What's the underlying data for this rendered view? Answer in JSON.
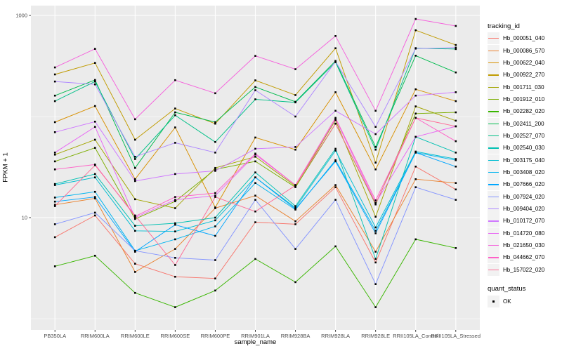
{
  "figure": {
    "background": "#FFFFFF",
    "panel_background": "#EBEBEB",
    "grid_color": "#FFFFFF",
    "tick_label_color": "#4D4D4D",
    "axis_title_color": "#000000",
    "point_color": "#000000",
    "legend_key_background": "#F2F2F2"
  },
  "chart_data": {
    "type": "line",
    "title": "",
    "xlabel": "sample_name",
    "ylabel": "FPKM + 1",
    "y_scale": "log10",
    "grid": true,
    "point_shape": "square",
    "ylim": [
      0.78,
      1250
    ],
    "y_ticks": [
      {
        "value": 1000,
        "label": "1000"
      },
      {
        "value": 10,
        "label": "10"
      }
    ],
    "y_minor": [
      100,
      1
    ],
    "categories": [
      "PB350LA",
      "RRIM600LA",
      "RRIM600LE",
      "RRIM600SE",
      "RRIM600PE",
      "RRIM901LA",
      "RRIM928BA",
      "RRIM928LA",
      "RRIM928LE",
      "RRII105LA_Control",
      "RRII105LA_Stressed"
    ],
    "series": [
      {
        "id": "Hb_000051_040",
        "color": "#F8766D",
        "values": [
          6.4,
          10.5,
          3.5,
          2.6,
          2.5,
          9.0,
          8.6,
          20,
          3.6,
          32,
          19
        ]
      },
      {
        "id": "Hb_000086_570",
        "color": "#EA8331",
        "values": [
          13.4,
          15.5,
          2.9,
          4.9,
          12.4,
          16.5,
          9.2,
          21,
          4.6,
          24,
          22
        ]
      },
      {
        "id": "Hb_000622_040",
        "color": "#D89000",
        "values": [
          88,
          127,
          24,
          78,
          12.6,
          62,
          47,
          174,
          30,
          186,
          142
        ]
      },
      {
        "id": "Hb_000922_270",
        "color": "#C09B00",
        "values": [
          261,
          339,
          59,
          120,
          85,
          228,
          163,
          474,
          35,
          714,
          510
        ]
      },
      {
        "id": "Hb_001711_030",
        "color": "#A3A500",
        "values": [
          42,
          59,
          15.2,
          12.4,
          31,
          40,
          20.5,
          92,
          10.2,
          126,
          91
        ]
      },
      {
        "id": "Hb_001912_010",
        "color": "#7CAE00",
        "values": [
          36,
          49,
          9.7,
          14.5,
          30,
          36,
          20,
          85,
          13.5,
          107,
          110
        ]
      },
      {
        "id": "Hb_002282_020",
        "color": "#39B600",
        "values": [
          3.3,
          4.2,
          1.8,
          1.3,
          1.9,
          3.9,
          2.3,
          5.2,
          1.3,
          6.1,
          5.0
        ]
      },
      {
        "id": "Hb_002411_200",
        "color": "#00BB4E",
        "values": [
          161,
          230,
          31,
          110,
          88,
          196,
          140,
          355,
          50,
          400,
          273
        ]
      },
      {
        "id": "Hb_002527_070",
        "color": "#00C087",
        "values": [
          142,
          222,
          38,
          103,
          56,
          148,
          138,
          345,
          47,
          475,
          465
        ]
      },
      {
        "id": "Hb_002540_030",
        "color": "#00C0B2",
        "values": [
          21.5,
          27,
          8.3,
          8.8,
          10,
          28,
          13,
          48,
          3.9,
          63,
          44
        ]
      },
      {
        "id": "Hb_003175_040",
        "color": "#00BDD2",
        "values": [
          21,
          25,
          7.4,
          7.3,
          9.4,
          25,
          12.5,
          46,
          8.0,
          45,
          38
        ]
      },
      {
        "id": "Hb_003408_020",
        "color": "#00B4EF",
        "values": [
          15.8,
          18,
          4.7,
          6.1,
          8.2,
          22,
          12,
          37,
          7.4,
          44,
          37
        ]
      },
      {
        "id": "Hb_007666_020",
        "color": "#00A6FF",
        "values": [
          14.4,
          16,
          4.6,
          8.5,
          6.6,
          25,
          12.2,
          36,
          7.0,
          44,
          32
        ]
      },
      {
        "id": "Hb_007924_020",
        "color": "#8494FF",
        "values": [
          8.6,
          11.2,
          4.7,
          4.0,
          3.8,
          15,
          4.9,
          15,
          2.2,
          20,
          15
        ]
      },
      {
        "id": "Hb_009404_020",
        "color": "#AE87FF",
        "values": [
          222,
          208,
          40,
          55,
          44,
          182,
          100,
          350,
          79,
          470,
          480
        ]
      },
      {
        "id": "Hb_010172_070",
        "color": "#CF78FF",
        "values": [
          70,
          89,
          23,
          27,
          29,
          48,
          50,
          114,
          67,
          161,
          174
        ]
      },
      {
        "id": "Hb_014720_080",
        "color": "#E866F4",
        "values": [
          44,
          79,
          10,
          15,
          16.5,
          42,
          21,
          95,
          14,
          63,
          80
        ]
      },
      {
        "id": "Hb_021650_030",
        "color": "#F562DC",
        "values": [
          306,
          467,
          94,
          229,
          170,
          398,
          294,
          626,
          114,
          923,
          787
        ]
      },
      {
        "id": "Hb_044662_070",
        "color": "#FF61C7",
        "values": [
          30,
          33.5,
          10.3,
          16,
          17.5,
          43,
          21,
          97,
          14.8,
          97,
          57
        ]
      },
      {
        "id": "Hb_157022_020",
        "color": "#FF6B96",
        "values": [
          13.0,
          33,
          10.5,
          3.4,
          16,
          11.5,
          20.8,
          85,
          13.8,
          97,
          80
        ]
      }
    ],
    "legend": {
      "position": "right",
      "color_title": "tracking_id",
      "shape_title": "quant_status",
      "shape_items": [
        {
          "label": "OK",
          "shape": "square",
          "color": "#000000"
        }
      ]
    }
  }
}
